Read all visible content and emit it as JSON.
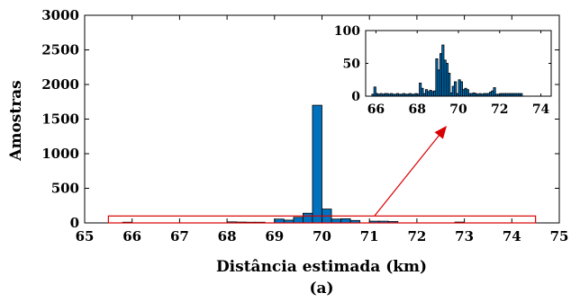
{
  "chart_data": [
    {
      "type": "bar",
      "xlabel": "Distância estimada (km)",
      "ylabel": "Amostras",
      "xlim": [
        65,
        75
      ],
      "ylim": [
        0,
        3000
      ],
      "xticks": [
        "65",
        "66",
        "67",
        "68",
        "69",
        "70",
        "71",
        "72",
        "73",
        "74",
        "75"
      ],
      "yticks": [
        "0",
        "500",
        "1000",
        "1500",
        "2000",
        "2500",
        "3000"
      ],
      "bin_width_km": 0.2,
      "bins_x": [
        65.9,
        68.1,
        68.3,
        68.5,
        68.7,
        69.1,
        69.3,
        69.5,
        69.7,
        69.9,
        70.1,
        70.3,
        70.5,
        70.7,
        71.1,
        71.3,
        71.5,
        72.9
      ],
      "values": [
        10,
        15,
        12,
        10,
        10,
        55,
        40,
        80,
        140,
        1700,
        200,
        55,
        60,
        35,
        25,
        25,
        20,
        12
      ],
      "grid": false,
      "highlight_box": {
        "x_range": [
          65.5,
          74.5
        ],
        "y_range": [
          0,
          100
        ],
        "color": "#D90000"
      },
      "panel_label": "(a)"
    },
    {
      "type": "bar",
      "title": "",
      "xlim": [
        65.5,
        74.5
      ],
      "ylim": [
        0,
        100
      ],
      "xticks": [
        "66",
        "68",
        "70",
        "72",
        "74"
      ],
      "yticks": [
        "0",
        "50",
        "100"
      ],
      "bin_width_km": 0.1,
      "bins_x": [
        65.85,
        65.95,
        66.05,
        66.15,
        66.25,
        66.35,
        66.45,
        66.55,
        66.65,
        66.75,
        66.85,
        66.95,
        67.05,
        67.15,
        67.25,
        67.35,
        67.45,
        67.55,
        67.65,
        67.75,
        67.85,
        67.95,
        68.05,
        68.15,
        68.25,
        68.35,
        68.45,
        68.55,
        68.65,
        68.75,
        68.85,
        68.95,
        69.05,
        69.15,
        69.25,
        69.35,
        69.45,
        69.55,
        69.65,
        69.75,
        69.85,
        69.95,
        70.05,
        70.15,
        70.25,
        70.35,
        70.45,
        70.55,
        70.65,
        70.75,
        70.85,
        70.95,
        71.05,
        71.15,
        71.25,
        71.35,
        71.45,
        71.55,
        71.65,
        71.75,
        71.85,
        71.95,
        72.05,
        72.15,
        72.25,
        72.35,
        72.45,
        72.55,
        72.65,
        72.75,
        72.85,
        72.95,
        73.05
      ],
      "values": [
        3,
        14,
        4,
        3,
        4,
        3,
        4,
        4,
        3,
        4,
        3,
        3,
        4,
        3,
        3,
        4,
        3,
        3,
        4,
        3,
        3,
        4,
        3,
        20,
        12,
        4,
        10,
        7,
        9,
        7,
        8,
        57,
        40,
        65,
        78,
        55,
        50,
        35,
        5,
        15,
        22,
        4,
        25,
        22,
        10,
        12,
        10,
        4,
        4,
        5,
        4,
        3,
        4,
        3,
        4,
        4,
        4,
        6,
        8,
        13,
        3,
        3,
        4,
        4,
        4,
        4,
        4,
        4,
        4,
        4,
        4,
        4,
        4
      ],
      "grid": false
    }
  ],
  "arrow": {
    "color": "#D90000"
  }
}
